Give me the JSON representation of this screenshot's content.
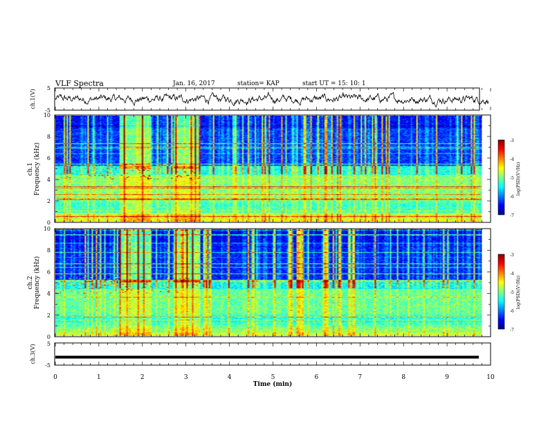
{
  "header": {
    "title": "VLF Spectra",
    "date": "Jan. 16, 2017",
    "station": "station= KAP",
    "start": "start  UT =   15: 10: 1"
  },
  "chart_data": [
    {
      "type": "line",
      "name": "ch1-waveform",
      "ylabel": "ch.1(V)",
      "ylim": [
        -5,
        5
      ],
      "yticks": [
        "5",
        "-5"
      ],
      "xlim": [
        0,
        10
      ],
      "signal_amplitude_v": 1.8
    },
    {
      "type": "heatmap",
      "name": "ch1-spectrogram",
      "ylabel_line1": "ch.1",
      "ylabel_line2": "Frequency (kHz)",
      "ylim": [
        0,
        10
      ],
      "yticks": [
        "0",
        "2",
        "4",
        "6",
        "8",
        "10"
      ],
      "xlim": [
        0,
        9.8
      ],
      "colorbar": {
        "label": "log(PSD)(V²/Hz)",
        "ticks": [
          "-3",
          "-4",
          "-5",
          "-6",
          "-7"
        ],
        "range": [
          -7,
          -3
        ]
      },
      "bursts_min": [
        [
          1.45,
          2.2
        ],
        [
          2.7,
          3.3
        ]
      ]
    },
    {
      "type": "heatmap",
      "name": "ch2-spectrogram",
      "ylabel_line1": "ch.2",
      "ylabel_line2": "Frequency (kHz)",
      "ylim": [
        0,
        10
      ],
      "yticks": [
        "0",
        "2",
        "4",
        "6",
        "8",
        "10"
      ],
      "xlim": [
        0,
        9.8
      ],
      "colorbar": {
        "label": "log(PSD)(V²/Hz)",
        "ticks": [
          "-3",
          "-4",
          "-5",
          "-6",
          "-7"
        ],
        "range": [
          -7,
          -3
        ]
      },
      "bursts_min": [
        [
          1.45,
          2.2
        ],
        [
          2.7,
          3.3
        ]
      ]
    },
    {
      "type": "line",
      "name": "ch3-waveform",
      "ylabel": "ch.3(V)",
      "ylim": [
        -5,
        5
      ],
      "yticks": [
        "5",
        "-5"
      ],
      "level_v": -1.4,
      "xlim": [
        0,
        10
      ],
      "xlabel": "Time (min)",
      "xticks": [
        "0",
        "1",
        "2",
        "3",
        "4",
        "5",
        "6",
        "7",
        "8",
        "9",
        "10"
      ]
    }
  ],
  "colors": {
    "cmap": [
      "#00008f",
      "#0000ff",
      "#0080ff",
      "#00ffff",
      "#80ff80",
      "#ffff00",
      "#ff8000",
      "#ff0000",
      "#800000"
    ]
  }
}
